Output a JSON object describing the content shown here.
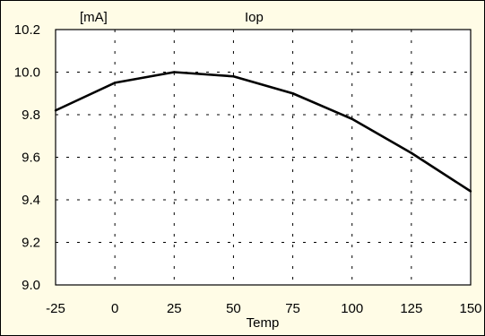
{
  "chart_data": {
    "type": "line",
    "title": "Iop",
    "unit_label": "[mA]",
    "xlabel": "Temp",
    "ylabel": "",
    "xlim": [
      -25,
      150
    ],
    "ylim": [
      9.0,
      10.2
    ],
    "x_ticks": [
      "-25",
      "0",
      "25",
      "50",
      "75",
      "100",
      "125",
      "150"
    ],
    "y_ticks": [
      "9.0",
      "9.2",
      "9.4",
      "9.6",
      "9.8",
      "10.0",
      "10.2"
    ],
    "x_tick_values": [
      -25,
      0,
      25,
      50,
      75,
      100,
      125,
      150
    ],
    "y_tick_values": [
      9.0,
      9.2,
      9.4,
      9.6,
      9.8,
      10.0,
      10.2
    ],
    "grid": true,
    "grid_style": "dashed",
    "legend": "none",
    "series": [
      {
        "x": [
          -25,
          0,
          25,
          50,
          75,
          100,
          125,
          150
        ],
        "y": [
          9.82,
          9.95,
          10.0,
          9.98,
          9.9,
          9.78,
          9.62,
          9.44
        ]
      }
    ],
    "colors": {
      "background": "#fffce6",
      "plot_area": "#ffffff",
      "line": "#000000",
      "grid": "#000000"
    }
  }
}
